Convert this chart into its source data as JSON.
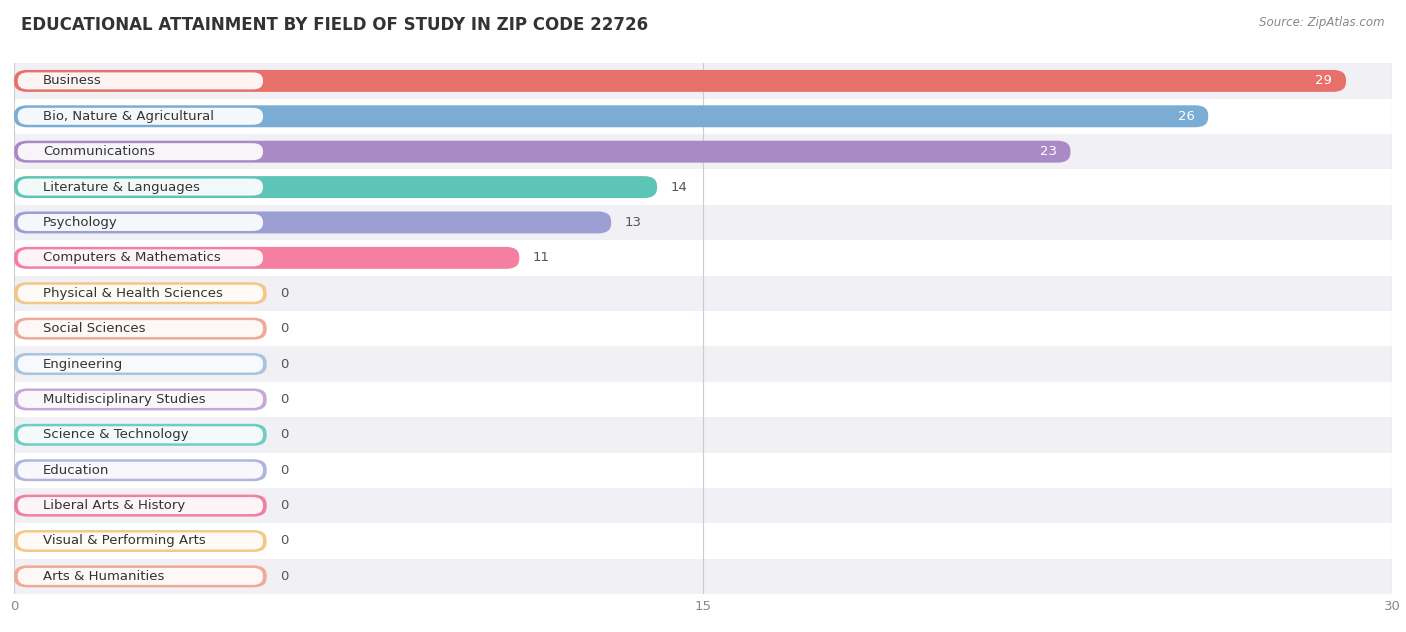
{
  "title": "EDUCATIONAL ATTAINMENT BY FIELD OF STUDY IN ZIP CODE 22726",
  "source": "Source: ZipAtlas.com",
  "categories": [
    "Business",
    "Bio, Nature & Agricultural",
    "Communications",
    "Literature & Languages",
    "Psychology",
    "Computers & Mathematics",
    "Physical & Health Sciences",
    "Social Sciences",
    "Engineering",
    "Multidisciplinary Studies",
    "Science & Technology",
    "Education",
    "Liberal Arts & History",
    "Visual & Performing Arts",
    "Arts & Humanities"
  ],
  "values": [
    29,
    26,
    23,
    14,
    13,
    11,
    0,
    0,
    0,
    0,
    0,
    0,
    0,
    0,
    0
  ],
  "bar_colors": [
    "#E8706A",
    "#7BADD4",
    "#A98AC7",
    "#5EC4B8",
    "#9B9FD4",
    "#F47FA0",
    "#F5C68A",
    "#F0A898",
    "#A8C4DC",
    "#C4A8D8",
    "#6ECEC4",
    "#B0B4E0",
    "#F080A0",
    "#F5C88A",
    "#F0A898"
  ],
  "xlim": [
    0,
    30
  ],
  "xticks": [
    0,
    15,
    30
  ],
  "background_color": "#FFFFFF",
  "row_bg_odd": "#F0F0F5",
  "row_bg_even": "#FFFFFF",
  "title_fontsize": 12,
  "bar_height": 0.62,
  "label_fontsize": 9.5,
  "value_fontsize": 9.5,
  "zero_bar_width": 5.5
}
